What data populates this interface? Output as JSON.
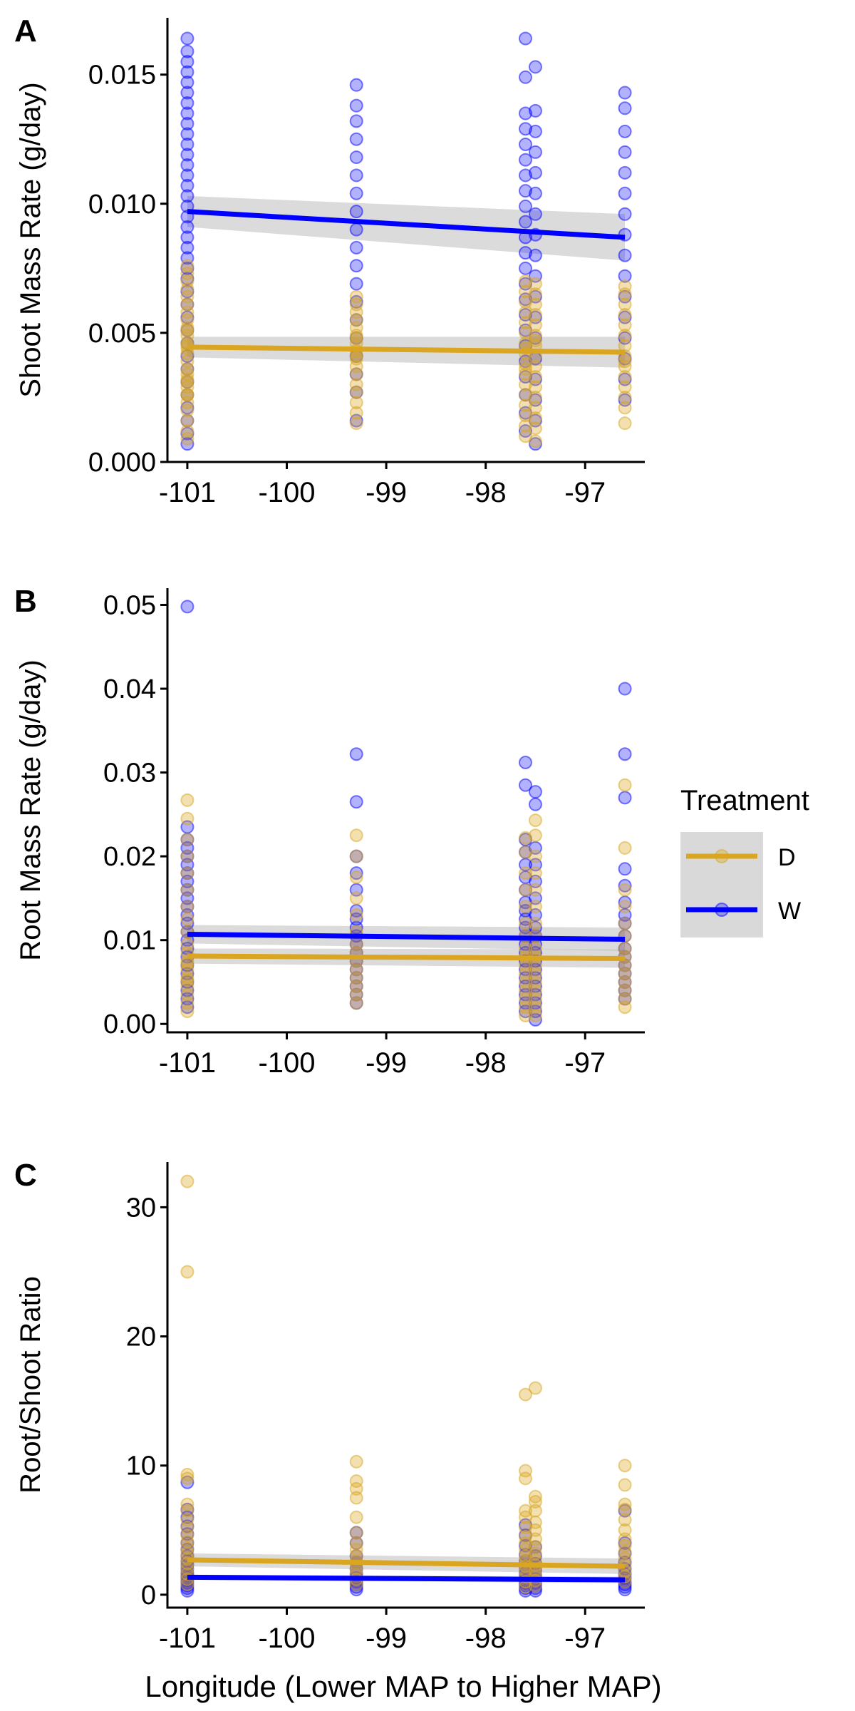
{
  "figure": {
    "x_axis_title": "Longitude (Lower MAP to Higher MAP)"
  },
  "legend": {
    "title": "Treatment",
    "entries": [
      {
        "label": "D",
        "color": "#DAA520"
      },
      {
        "label": "W",
        "color": "#0000FF"
      }
    ]
  },
  "colors": {
    "D": "#DAA520",
    "W": "#0000FF",
    "ribbon": "#BEBEBE",
    "legend_key_bg": "#D9D9D9"
  },
  "chart_data": [
    {
      "panel_label": "A",
      "type": "scatter",
      "ylabel": "Shoot Mass Rate (g/day)",
      "xlabel": "",
      "xlim": [
        -101.2,
        -96.4
      ],
      "ylim": [
        0,
        0.0172
      ],
      "x_ticks": [
        -101,
        -100,
        -99,
        -98,
        -97
      ],
      "x_tick_labels": [
        "-101",
        "-100",
        "-99",
        "-98",
        "-97"
      ],
      "y_ticks": [
        0,
        0.005,
        0.01,
        0.015
      ],
      "y_tick_labels": [
        "0.000",
        "0.005",
        "0.010",
        "0.015"
      ],
      "grid": false,
      "x_sites": [
        -101.0,
        -99.3,
        -97.6,
        -97.5,
        -96.6
      ],
      "series": [
        {
          "name": "D",
          "fit": [
            [
              -101.0,
              0.00445
            ],
            [
              -96.6,
              0.00425
            ]
          ],
          "ci": [
            0.0004,
            0.0006
          ],
          "points": {
            "-101": [
              0.0012,
              0.0016,
              0.002,
              0.0023,
              0.0026,
              0.0029,
              0.0031,
              0.0034,
              0.0036,
              0.0039,
              0.0042,
              0.0044,
              0.0046,
              0.0049,
              0.0052,
              0.0055,
              0.0058,
              0.0061,
              0.0064,
              0.0067,
              0.007,
              0.0073,
              0.0076,
              0.0026,
              0.0032,
              0.0045,
              0.0051,
              0.0009
            ],
            "-99.3": [
              0.0015,
              0.0019,
              0.0023,
              0.0027,
              0.003,
              0.0034,
              0.0037,
              0.004,
              0.0043,
              0.0046,
              0.0049,
              0.0052,
              0.0055,
              0.0058,
              0.0061,
              0.0064,
              0.0048,
              0.0041
            ],
            "-97.6": [
              0.001,
              0.0014,
              0.0018,
              0.0022,
              0.0026,
              0.003,
              0.0034,
              0.0038,
              0.0042,
              0.0046,
              0.005,
              0.0054,
              0.0058,
              0.0062,
              0.0066,
              0.007,
              0.0036,
              0.0044
            ],
            "-97.5": [
              0.0008,
              0.0013,
              0.0017,
              0.0021,
              0.0025,
              0.0029,
              0.0033,
              0.0037,
              0.0041,
              0.0045,
              0.0049,
              0.0053,
              0.0057,
              0.0061,
              0.0065,
              0.0069,
              0.0047
            ],
            "-96.6": [
              0.0015,
              0.0021,
              0.0025,
              0.0029,
              0.0033,
              0.0037,
              0.0041,
              0.0045,
              0.0049,
              0.0053,
              0.0057,
              0.0061,
              0.0065,
              0.0068,
              0.0039
            ]
          }
        },
        {
          "name": "W",
          "fit": [
            [
              -101.0,
              0.0097
            ],
            [
              -96.6,
              0.0087
            ]
          ],
          "ci": [
            0.0006,
            0.0009
          ],
          "points": {
            "-101": [
              0.0007,
              0.0011,
              0.0016,
              0.0021,
              0.0026,
              0.0031,
              0.0036,
              0.0041,
              0.0046,
              0.0051,
              0.0056,
              0.0061,
              0.0066,
              0.0071,
              0.0075,
              0.0079,
              0.0083,
              0.0087,
              0.0091,
              0.0095,
              0.0099,
              0.0103,
              0.0107,
              0.0111,
              0.0115,
              0.0119,
              0.0123,
              0.0127,
              0.0131,
              0.0135,
              0.0139,
              0.0143,
              0.0147,
              0.0151,
              0.0155,
              0.0159,
              0.0164
            ],
            "-99.3": [
              0.0016,
              0.0027,
              0.0034,
              0.0041,
              0.0048,
              0.0055,
              0.0062,
              0.0069,
              0.0076,
              0.0083,
              0.009,
              0.0097,
              0.0104,
              0.0111,
              0.0118,
              0.0125,
              0.0132,
              0.0138,
              0.0146
            ],
            "-97.6": [
              0.0012,
              0.0019,
              0.0026,
              0.0033,
              0.0039,
              0.0045,
              0.0051,
              0.0057,
              0.0063,
              0.0069,
              0.0075,
              0.0081,
              0.0087,
              0.0093,
              0.0099,
              0.0105,
              0.0111,
              0.0117,
              0.0123,
              0.0129,
              0.0135,
              0.0149,
              0.0164
            ],
            "-97.5": [
              0.0007,
              0.0016,
              0.0024,
              0.0032,
              0.004,
              0.0048,
              0.0056,
              0.0064,
              0.0072,
              0.008,
              0.0088,
              0.0096,
              0.0104,
              0.0112,
              0.012,
              0.0128,
              0.0136,
              0.0153
            ],
            "-96.6": [
              0.0024,
              0.0032,
              0.004,
              0.0048,
              0.0056,
              0.0064,
              0.0072,
              0.008,
              0.0088,
              0.0096,
              0.0104,
              0.0112,
              0.012,
              0.0128,
              0.0137,
              0.0143
            ]
          }
        }
      ]
    },
    {
      "panel_label": "B",
      "type": "scatter",
      "ylabel": "Root Mass Rate (g/day)",
      "xlabel": "",
      "xlim": [
        -101.2,
        -96.4
      ],
      "ylim": [
        -0.001,
        0.052
      ],
      "x_ticks": [
        -101,
        -100,
        -99,
        -98,
        -97
      ],
      "x_tick_labels": [
        "-101",
        "-100",
        "-99",
        "-98",
        "-97"
      ],
      "y_ticks": [
        0,
        0.01,
        0.02,
        0.03,
        0.04,
        0.05
      ],
      "y_tick_labels": [
        "0.00",
        "0.01",
        "0.02",
        "0.03",
        "0.04",
        "0.05"
      ],
      "grid": false,
      "x_sites": [
        -101.0,
        -99.3,
        -97.6,
        -97.5,
        -96.6
      ],
      "series": [
        {
          "name": "D",
          "fit": [
            [
              -101.0,
              0.0081
            ],
            [
              -96.6,
              0.0078
            ]
          ],
          "ci": [
            0.0009,
            0.0011
          ],
          "points": {
            "-101": [
              0.0015,
              0.0025,
              0.0035,
              0.0045,
              0.0055,
              0.0065,
              0.0075,
              0.0085,
              0.0095,
              0.011,
              0.0125,
              0.014,
              0.016,
              0.018,
              0.02,
              0.022,
              0.0245,
              0.0267,
              0.0052,
              0.0072
            ],
            "-99.3": [
              0.0025,
              0.0035,
              0.0045,
              0.0055,
              0.0065,
              0.0075,
              0.0085,
              0.0095,
              0.011,
              0.013,
              0.015,
              0.0175,
              0.02,
              0.0225
            ],
            "-97.6": [
              0.001,
              0.002,
              0.003,
              0.004,
              0.005,
              0.006,
              0.007,
              0.008,
              0.009,
              0.0105,
              0.012,
              0.014,
              0.016,
              0.018,
              0.0205,
              0.0222
            ],
            "-97.5": [
              0.001,
              0.002,
              0.003,
              0.004,
              0.005,
              0.006,
              0.007,
              0.008,
              0.009,
              0.0105,
              0.012,
              0.014,
              0.016,
              0.018,
              0.02,
              0.0225,
              0.0243
            ],
            "-96.6": [
              0.002,
              0.003,
              0.004,
              0.005,
              0.006,
              0.007,
              0.008,
              0.009,
              0.0105,
              0.012,
              0.014,
              0.016,
              0.021,
              0.0285
            ]
          }
        },
        {
          "name": "W",
          "fit": [
            [
              -101.0,
              0.0107
            ],
            [
              -96.6,
              0.0101
            ]
          ],
          "ci": [
            0.0011,
            0.0014
          ],
          "points": {
            "-101": [
              0.002,
              0.003,
              0.004,
              0.005,
              0.006,
              0.007,
              0.008,
              0.009,
              0.01,
              0.011,
              0.012,
              0.013,
              0.014,
              0.015,
              0.016,
              0.017,
              0.018,
              0.019,
              0.02,
              0.021,
              0.022,
              0.0235,
              0.0498
            ],
            "-99.3": [
              0.0025,
              0.0035,
              0.0045,
              0.0055,
              0.0065,
              0.0075,
              0.0085,
              0.0095,
              0.0105,
              0.0115,
              0.0125,
              0.0135,
              0.016,
              0.018,
              0.02,
              0.0265,
              0.0322
            ],
            "-97.6": [
              0.0015,
              0.0025,
              0.0035,
              0.0045,
              0.0055,
              0.0065,
              0.0075,
              0.0085,
              0.0095,
              0.0105,
              0.0115,
              0.0125,
              0.0135,
              0.0145,
              0.016,
              0.0175,
              0.019,
              0.0205,
              0.022,
              0.0285,
              0.0312
            ],
            "-97.5": [
              0.0005,
              0.0015,
              0.0025,
              0.0035,
              0.0045,
              0.0055,
              0.0065,
              0.0075,
              0.0085,
              0.0095,
              0.0105,
              0.0115,
              0.013,
              0.015,
              0.017,
              0.019,
              0.021,
              0.0262,
              0.0277
            ],
            "-96.6": [
              0.003,
              0.004,
              0.005,
              0.006,
              0.007,
              0.008,
              0.009,
              0.0105,
              0.012,
              0.013,
              0.0145,
              0.0165,
              0.0185,
              0.027,
              0.0322,
              0.04
            ]
          }
        }
      ]
    },
    {
      "panel_label": "C",
      "type": "scatter",
      "ylabel": "Root/Shoot Ratio",
      "xlabel": "Longitude (Lower MAP to Higher MAP)",
      "xlim": [
        -101.2,
        -96.4
      ],
      "ylim": [
        -1,
        33.5
      ],
      "x_ticks": [
        -101,
        -100,
        -99,
        -98,
        -97
      ],
      "x_tick_labels": [
        "-101",
        "-100",
        "-99",
        "-98",
        "-97"
      ],
      "y_ticks": [
        0,
        10,
        20,
        30
      ],
      "y_tick_labels": [
        "0",
        "10",
        "20",
        "30"
      ],
      "grid": false,
      "x_sites": [
        -101.0,
        -99.3,
        -97.6,
        -97.5,
        -96.6
      ],
      "series": [
        {
          "name": "D",
          "fit": [
            [
              -101.0,
              2.7
            ],
            [
              -96.6,
              2.2
            ]
          ],
          "ci": [
            0.5,
            0.6
          ],
          "points": {
            "-101": [
              0.8,
              1.2,
              1.6,
              2.0,
              2.4,
              2.8,
              3.2,
              3.6,
              4.1,
              4.6,
              5.2,
              5.8,
              6.5,
              7.0,
              9.0,
              9.3,
              25.0,
              32.0
            ],
            "-99.3": [
              0.8,
              1.2,
              1.6,
              2.0,
              2.5,
              3.0,
              3.5,
              4.0,
              4.8,
              6.0,
              7.5,
              8.2,
              8.8,
              10.3
            ],
            "-97.6": [
              0.6,
              1.0,
              1.4,
              1.8,
              2.2,
              2.6,
              3.0,
              3.5,
              4.0,
              4.5,
              5.2,
              6.0,
              6.5,
              9.0,
              9.6,
              15.5
            ],
            "-97.5": [
              0.7,
              1.1,
              1.5,
              1.9,
              2.3,
              2.7,
              3.2,
              3.7,
              4.3,
              5.0,
              5.6,
              6.5,
              7.2,
              7.6,
              16.0
            ],
            "-96.6": [
              1.0,
              1.4,
              1.8,
              2.3,
              2.8,
              3.3,
              3.8,
              4.3,
              5.0,
              5.8,
              6.6,
              7.0,
              8.5,
              10.0
            ]
          }
        },
        {
          "name": "W",
          "fit": [
            [
              -101.0,
              1.35
            ],
            [
              -96.6,
              1.15
            ]
          ],
          "ci": [
            0.2,
            0.25
          ],
          "points": {
            "-101": [
              0.3,
              0.5,
              0.7,
              0.9,
              1.1,
              1.3,
              1.5,
              1.7,
              2.0,
              2.3,
              2.6,
              3.0,
              3.5,
              4.0,
              4.7,
              5.3,
              6.0,
              6.6,
              8.7
            ],
            "-99.3": [
              0.4,
              0.6,
              0.8,
              1.0,
              1.3,
              1.6,
              2.0,
              2.5,
              3.0,
              4.0,
              4.8
            ],
            "-97.6": [
              0.3,
              0.5,
              0.7,
              0.9,
              1.1,
              1.4,
              1.7,
              2.1,
              2.6,
              3.1,
              3.8,
              4.6,
              5.4
            ],
            "-97.5": [
              0.3,
              0.5,
              0.7,
              0.9,
              1.2,
              1.5,
              1.9,
              2.4,
              3.0,
              3.7
            ],
            "-96.6": [
              0.4,
              0.6,
              0.8,
              1.0,
              1.3,
              1.6,
              2.0,
              2.5,
              3.2,
              4.0,
              6.5
            ]
          }
        }
      ]
    }
  ]
}
